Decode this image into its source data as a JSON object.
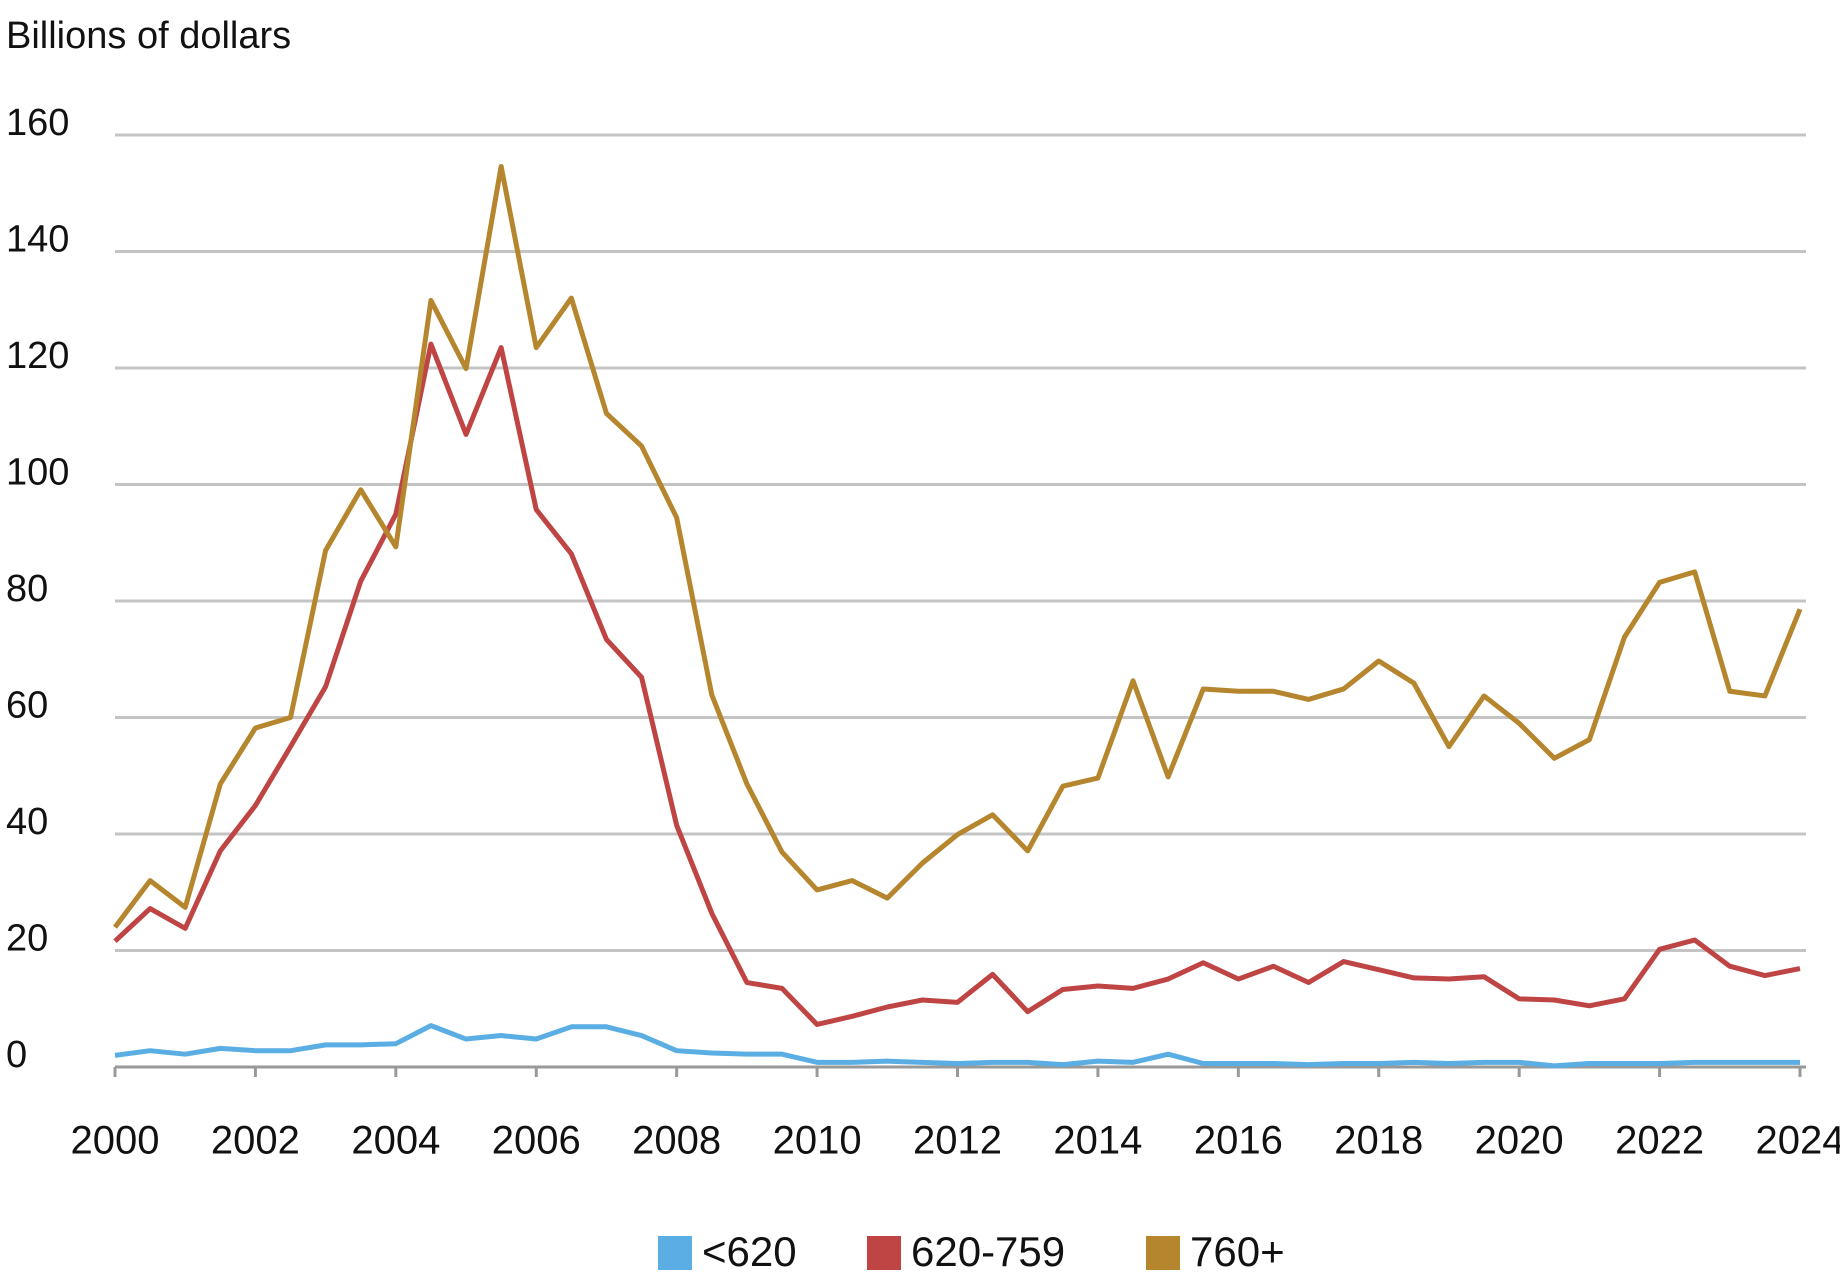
{
  "chart_data": {
    "type": "line",
    "title": "Billions of dollars",
    "x": [
      2000,
      2000.5,
      2001,
      2001.5,
      2002,
      2002.5,
      2003,
      2003.5,
      2004,
      2004.5,
      2005,
      2005.5,
      2006,
      2006.5,
      2007,
      2007.5,
      2008,
      2008.5,
      2009,
      2009.5,
      2010,
      2010.5,
      2011,
      2011.5,
      2012,
      2012.5,
      2013,
      2013.5,
      2014,
      2014.5,
      2015,
      2015.5,
      2016,
      2016.5,
      2017,
      2017.5,
      2018,
      2018.5,
      2019,
      2019.5,
      2020,
      2020.5,
      2021,
      2021.5,
      2022,
      2022.5,
      2023,
      2023.5,
      2024
    ],
    "series": [
      {
        "name": "<620",
        "color": "#5aaee3",
        "values": [
          2.0,
          2.8,
          2.2,
          3.2,
          2.8,
          2.8,
          3.8,
          3.8,
          4.0,
          7.1,
          4.8,
          5.4,
          4.8,
          6.9,
          6.9,
          5.4,
          2.8,
          2.4,
          2.2,
          2.2,
          0.8,
          0.8,
          1.0,
          0.8,
          0.6,
          0.8,
          0.8,
          0.4,
          1.0,
          0.8,
          2.2,
          0.6,
          0.6,
          0.6,
          0.4,
          0.6,
          0.6,
          0.8,
          0.6,
          0.8,
          0.8,
          0.2,
          0.6,
          0.6,
          0.6,
          0.8,
          0.8,
          0.8,
          0.8
        ]
      },
      {
        "name": "620-759",
        "color": "#bf4444",
        "values": [
          21.6,
          27.2,
          23.8,
          37.1,
          44.9,
          55,
          65.3,
          83.4,
          94.9,
          124.1,
          108.6,
          123.5,
          95.7,
          88.1,
          73.4,
          66.9,
          41.5,
          26.4,
          14.5,
          13.5,
          7.3,
          8.7,
          10.3,
          11.5,
          11.1,
          15.9,
          9.5,
          13.3,
          13.9,
          13.5,
          15.1,
          17.9,
          15.1,
          17.3,
          14.5,
          18.1,
          16.7,
          15.3,
          15.1,
          15.5,
          11.7,
          11.5,
          10.5,
          11.7,
          20.2,
          21.8,
          17.3,
          15.7,
          16.9
        ]
      },
      {
        "name": "760+",
        "color": "#b5862e",
        "values": [
          24,
          32,
          27.4,
          48.6,
          58.2,
          60,
          88.7,
          99.1,
          89.3,
          131.6,
          119.9,
          154.6,
          123.5,
          132,
          112.2,
          106.6,
          94.3,
          63.9,
          48.6,
          36.9,
          30.4,
          32,
          29,
          35,
          39.9,
          43.3,
          37.1,
          48.2,
          49.6,
          66.3,
          49.8,
          64.9,
          64.5,
          64.5,
          63.1,
          64.9,
          69.7,
          65.9,
          55,
          63.7,
          59,
          53,
          56.2,
          73.8,
          83.2,
          85,
          64.5,
          63.7,
          78.6
        ]
      }
    ],
    "xlim": [
      2000,
      2024
    ],
    "xticks": [
      2000,
      2002,
      2004,
      2006,
      2008,
      2010,
      2012,
      2014,
      2016,
      2018,
      2020,
      2022,
      2024
    ],
    "ylim": [
      0,
      160
    ],
    "yticks": [
      0,
      20,
      40,
      60,
      80,
      100,
      120,
      140,
      160
    ],
    "grid": true,
    "legend": "bottom"
  }
}
